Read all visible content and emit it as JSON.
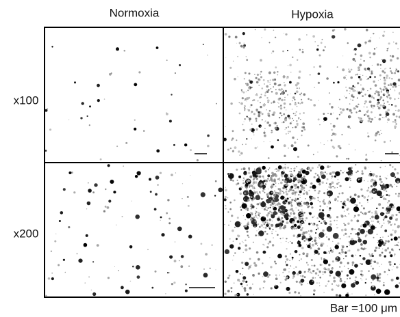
{
  "columns": [
    "Normoxia",
    "Hypoxia"
  ],
  "rows": [
    "x100",
    "x200"
  ],
  "caption": "Bar =100 μm"
}
